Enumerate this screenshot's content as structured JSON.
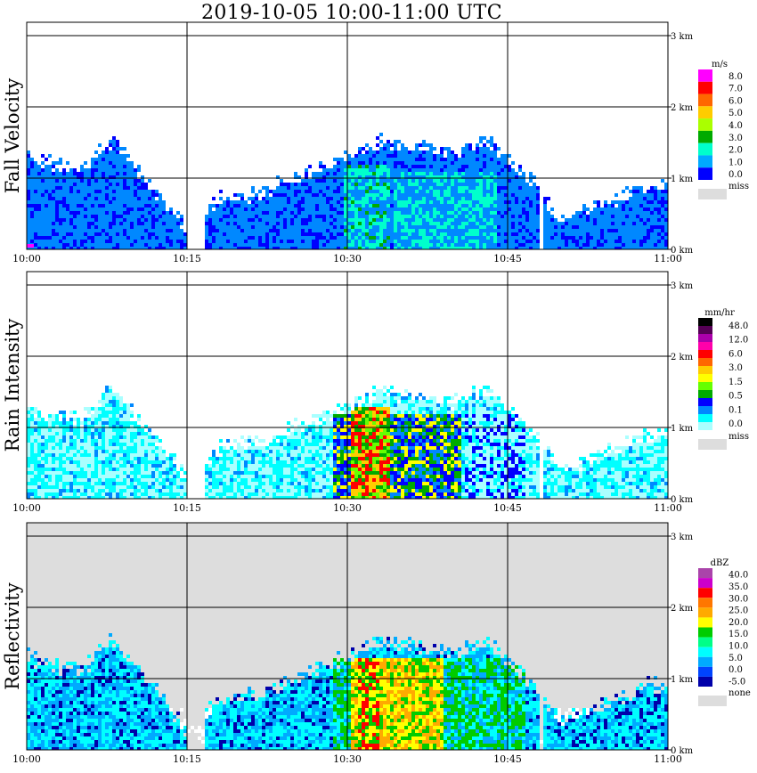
{
  "title": "2019-10-05   10:00-11:00 UTC",
  "chart_data": [
    {
      "type": "heatmap",
      "ylabel": "Fall Velocity",
      "x_ticks": [
        "10:00",
        "10:15",
        "10:30",
        "10:45",
        "11:00"
      ],
      "y_ticks": [
        "0 km",
        "1 km",
        "2 km",
        "3 km"
      ],
      "xlim": [
        "10:00",
        "11:00"
      ],
      "ylim_km": [
        0,
        3.1
      ],
      "grid": true,
      "legend": {
        "position": "right",
        "unit": "m/s",
        "labels": [
          "8.0",
          "7.0",
          "6.0",
          "5.0",
          "4.0",
          "3.0",
          "2.0",
          "1.0",
          "0.0"
        ],
        "colors": [
          "#ff00ff",
          "#ff0000",
          "#ff6600",
          "#ffcc00",
          "#aaff00",
          "#00aa00",
          "#00ffcc",
          "#00aaff",
          "#0000ff"
        ],
        "missing_label": "miss",
        "missing_color": "#dddddd"
      },
      "echo_tops_km": [
        {
          "t": "10:00",
          "top": 1.3
        },
        {
          "t": "10:05",
          "top": 1.1
        },
        {
          "t": "10:08",
          "top": 1.55
        },
        {
          "t": "10:10",
          "top": 1.2
        },
        {
          "t": "10:15",
          "top": 0.3
        },
        {
          "t": "10:18",
          "top": 0.7
        },
        {
          "t": "10:22",
          "top": 0.8
        },
        {
          "t": "10:25",
          "top": 1.0
        },
        {
          "t": "10:30",
          "top": 1.3
        },
        {
          "t": "10:33",
          "top": 1.5
        },
        {
          "t": "10:37",
          "top": 1.45
        },
        {
          "t": "10:40",
          "top": 1.35
        },
        {
          "t": "10:43",
          "top": 1.55
        },
        {
          "t": "10:47",
          "top": 1.0
        },
        {
          "t": "10:50",
          "top": 0.4
        },
        {
          "t": "10:55",
          "top": 0.7
        },
        {
          "t": "10:58",
          "top": 0.9
        }
      ]
    },
    {
      "type": "heatmap",
      "ylabel": "Rain Intensity",
      "x_ticks": [
        "10:00",
        "10:15",
        "10:30",
        "10:45",
        "11:00"
      ],
      "y_ticks": [
        "0 km",
        "1 km",
        "2 km",
        "3 km"
      ],
      "grid": true,
      "legend": {
        "position": "right",
        "unit": "mm/hr",
        "labels": [
          "48.0",
          "12.0",
          "6.0",
          "3.0",
          "1.5",
          "0.5",
          "0.1",
          "0.0"
        ],
        "colors": [
          "#000000",
          "#550055",
          "#aa00aa",
          "#ff00aa",
          "#ff0000",
          "#ff6600",
          "#ffcc00",
          "#ffff00",
          "#66ff00",
          "#00aa00",
          "#0000ff",
          "#0088ff",
          "#00ffff",
          "#aaffff"
        ],
        "missing_label": "miss",
        "missing_color": "#dddddd"
      },
      "max_core": {
        "t": "10:31-10:38",
        "value_mm_hr": 6.0,
        "top_km": 1.4
      }
    },
    {
      "type": "heatmap",
      "ylabel": "Reflectivity",
      "x_ticks": [
        "10:00",
        "10:15",
        "10:30",
        "10:45",
        "11:00"
      ],
      "y_ticks": [
        "0 km",
        "1 km",
        "2 km",
        "3 km"
      ],
      "grid": true,
      "background": "#dddddd",
      "legend": {
        "position": "right",
        "unit": "dBZ",
        "labels": [
          "40.0",
          "35.0",
          "30.0",
          "25.0",
          "20.0",
          "15.0",
          "10.0",
          "5.0",
          "0.0",
          "-5.0"
        ],
        "colors": [
          "#aa44aa",
          "#cc00cc",
          "#ff0000",
          "#ff7700",
          "#ffaa00",
          "#ffff00",
          "#00cc00",
          "#00ff88",
          "#00ffff",
          "#00aaff",
          "#0044ff",
          "#0000aa"
        ],
        "missing_label": "none",
        "missing_color": "#dddddd"
      },
      "max_core": {
        "t": "10:32-10:37",
        "value_dbz": 30.0,
        "top_km": 1.5
      }
    }
  ]
}
